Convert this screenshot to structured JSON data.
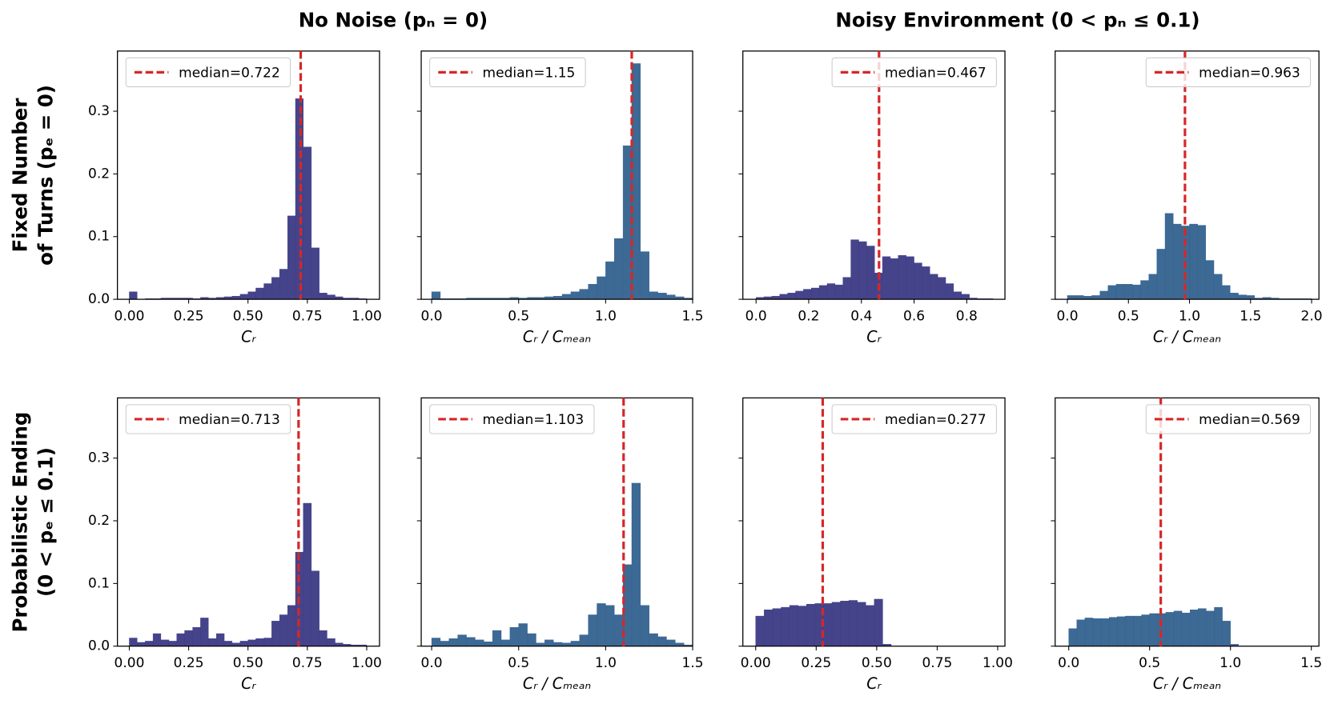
{
  "column_titles": [
    "No Noise (pₙ = 0)",
    "Noisy Environment (0 < pₙ ≤ 0.1)"
  ],
  "row_titles": [
    [
      "Fixed Number",
      "of Turns (pₑ = 0)"
    ],
    [
      "Probabilistic Ending",
      "(0 < pₑ ≤ 0.1)"
    ]
  ],
  "chart_data": [
    {
      "type": "histogram",
      "color": "#3b3a85",
      "xlabel": "Cᵣ",
      "median": 0.722,
      "legend_label": "median=0.722",
      "legend": "upper left",
      "xlim": [
        -0.05,
        1.054
      ],
      "xticks": [
        {
          "value": 0,
          "label": "0.00"
        },
        0.25,
        {
          "value": 0.5,
          "label": "0.50"
        },
        0.75,
        {
          "value": 1,
          "label": "1.00"
        }
      ],
      "ylim": [
        0,
        0.396
      ],
      "yticks": [
        {
          "value": 0,
          "label": "0.0"
        },
        0.1,
        0.2,
        0.3
      ],
      "bins": [
        0,
        0.033,
        0.067,
        0.1,
        0.133,
        0.167,
        0.2,
        0.233,
        0.267,
        0.3,
        0.333,
        0.367,
        0.4,
        0.433,
        0.467,
        0.5,
        0.533,
        0.567,
        0.6,
        0.633,
        0.667,
        0.7,
        0.733,
        0.767,
        0.8,
        0.833,
        0.867,
        0.9,
        0.933,
        0.967,
        1.0
      ],
      "values": [
        0.012,
        0,
        0.001,
        0.001,
        0.002,
        0.002,
        0.002,
        0.002,
        0.001,
        0.003,
        0.002,
        0.003,
        0.004,
        0.005,
        0.008,
        0.012,
        0.018,
        0.025,
        0.035,
        0.048,
        0.133,
        0.32,
        0.243,
        0.082,
        0.01,
        0.007,
        0.004,
        0.002,
        0.002,
        0.001
      ]
    },
    {
      "type": "histogram",
      "color": "#33618f",
      "xlabel": "Cᵣ / Cₘₑₐₙ",
      "median": 1.15,
      "legend_label": "median=1.15",
      "legend": "upper left",
      "xlim": [
        -0.06,
        1.5
      ],
      "xticks": [
        {
          "value": 0,
          "label": "0.0"
        },
        0.5,
        {
          "value": 1,
          "label": "1.0"
        },
        1.5
      ],
      "ylim": [
        0,
        0.396
      ],
      "bins": [
        0,
        0.05,
        0.1,
        0.15,
        0.2,
        0.25,
        0.3,
        0.35,
        0.4,
        0.45,
        0.5,
        0.55,
        0.6,
        0.65,
        0.7,
        0.75,
        0.8,
        0.85,
        0.9,
        0.95,
        1.0,
        1.05,
        1.1,
        1.15,
        1.2,
        1.25,
        1.3,
        1.35,
        1.4,
        1.45,
        1.5
      ],
      "values": [
        0.012,
        0.001,
        0.001,
        0.001,
        0.002,
        0.002,
        0.002,
        0.002,
        0.002,
        0.003,
        0.002,
        0.003,
        0.003,
        0.004,
        0.005,
        0.008,
        0.012,
        0.016,
        0.024,
        0.036,
        0.06,
        0.097,
        0.245,
        0.376,
        0.076,
        0.012,
        0.01,
        0.007,
        0.004,
        0.002
      ]
    },
    {
      "type": "histogram",
      "color": "#3b3a85",
      "xlabel": "Cᵣ",
      "median": 0.467,
      "legend_label": "median=0.467",
      "legend": "upper right",
      "xlim": [
        -0.05,
        0.945
      ],
      "xticks": [
        {
          "value": 0,
          "label": "0.0"
        },
        0.2,
        0.4,
        0.6,
        0.8
      ],
      "ylim": [
        0,
        0.396
      ],
      "bins": [
        0,
        0.03,
        0.06,
        0.09,
        0.12,
        0.15,
        0.18,
        0.21,
        0.24,
        0.27,
        0.3,
        0.33,
        0.36,
        0.39,
        0.42,
        0.45,
        0.48,
        0.51,
        0.54,
        0.57,
        0.6,
        0.63,
        0.66,
        0.69,
        0.72,
        0.75,
        0.78,
        0.81,
        0.84,
        0.87,
        0.9
      ],
      "values": [
        0.003,
        0.004,
        0.005,
        0.008,
        0.01,
        0.013,
        0.016,
        0.018,
        0.022,
        0.025,
        0.023,
        0.035,
        0.095,
        0.092,
        0.085,
        0.042,
        0.068,
        0.065,
        0.07,
        0.068,
        0.058,
        0.052,
        0.04,
        0.035,
        0.025,
        0.012,
        0.008,
        0.002,
        0.001,
        0.001
      ]
    },
    {
      "type": "histogram",
      "color": "#33618f",
      "xlabel": "Cᵣ / Cₘₑₐₙ",
      "median": 0.963,
      "legend_label": "median=0.963",
      "legend": "upper right",
      "xlim": [
        -0.1,
        2.06
      ],
      "xticks": [
        {
          "value": 0,
          "label": "0.0"
        },
        0.5,
        {
          "value": 1,
          "label": "1.0"
        },
        1.5,
        {
          "value": 2,
          "label": "2.0"
        }
      ],
      "ylim": [
        0,
        0.396
      ],
      "bins": [
        0,
        0.067,
        0.133,
        0.2,
        0.267,
        0.333,
        0.4,
        0.467,
        0.533,
        0.6,
        0.667,
        0.733,
        0.8,
        0.867,
        0.933,
        1.0,
        1.067,
        1.133,
        1.2,
        1.267,
        1.333,
        1.4,
        1.467,
        1.533,
        1.6,
        1.667,
        1.733,
        1.8,
        1.867,
        1.933,
        2.0
      ],
      "values": [
        0.006,
        0.006,
        0.005,
        0.006,
        0.013,
        0.022,
        0.024,
        0.024,
        0.023,
        0.03,
        0.04,
        0.08,
        0.137,
        0.12,
        0.117,
        0.12,
        0.118,
        0.062,
        0.04,
        0.022,
        0.01,
        0.007,
        0.006,
        0.002,
        0.003,
        0.002,
        0.001,
        0.001,
        0.001,
        0.001
      ]
    },
    {
      "type": "histogram",
      "color": "#3b3a85",
      "xlabel": "Cᵣ",
      "median": 0.713,
      "legend_label": "median=0.713",
      "legend": "upper left",
      "xlim": [
        -0.05,
        1.054
      ],
      "xticks": [
        {
          "value": 0,
          "label": "0.00"
        },
        0.25,
        {
          "value": 0.5,
          "label": "0.50"
        },
        0.75,
        {
          "value": 1,
          "label": "1.00"
        }
      ],
      "ylim": [
        0,
        0.396
      ],
      "yticks": [
        {
          "value": 0,
          "label": "0.0"
        },
        0.1,
        0.2,
        0.3
      ],
      "bins": [
        0,
        0.033,
        0.067,
        0.1,
        0.133,
        0.167,
        0.2,
        0.233,
        0.267,
        0.3,
        0.333,
        0.367,
        0.4,
        0.433,
        0.467,
        0.5,
        0.533,
        0.567,
        0.6,
        0.633,
        0.667,
        0.7,
        0.733,
        0.767,
        0.8,
        0.833,
        0.867,
        0.9,
        0.933,
        0.967,
        1.0
      ],
      "values": [
        0.013,
        0.006,
        0.008,
        0.02,
        0.01,
        0.008,
        0.02,
        0.025,
        0.03,
        0.045,
        0.012,
        0.02,
        0.008,
        0.005,
        0.008,
        0.01,
        0.012,
        0.013,
        0.04,
        0.05,
        0.065,
        0.15,
        0.228,
        0.12,
        0.025,
        0.012,
        0.005,
        0.003,
        0.002,
        0.002
      ]
    },
    {
      "type": "histogram",
      "color": "#33618f",
      "xlabel": "Cᵣ / Cₘₑₐₙ",
      "median": 1.103,
      "legend_label": "median=1.103",
      "legend": "upper left",
      "xlim": [
        -0.06,
        1.5
      ],
      "xticks": [
        {
          "value": 0,
          "label": "0.0"
        },
        0.5,
        {
          "value": 1,
          "label": "1.0"
        },
        1.5
      ],
      "ylim": [
        0,
        0.396
      ],
      "bins": [
        0,
        0.05,
        0.1,
        0.15,
        0.2,
        0.25,
        0.3,
        0.35,
        0.4,
        0.45,
        0.5,
        0.55,
        0.6,
        0.65,
        0.7,
        0.75,
        0.8,
        0.85,
        0.9,
        0.95,
        1.0,
        1.05,
        1.1,
        1.15,
        1.2,
        1.25,
        1.3,
        1.35,
        1.4,
        1.45,
        1.5
      ],
      "values": [
        0.013,
        0.008,
        0.012,
        0.018,
        0.014,
        0.01,
        0.007,
        0.025,
        0.01,
        0.03,
        0.036,
        0.02,
        0.005,
        0.01,
        0.006,
        0.005,
        0.008,
        0.018,
        0.05,
        0.068,
        0.065,
        0.05,
        0.13,
        0.26,
        0.065,
        0.02,
        0.015,
        0.01,
        0.005,
        0.002
      ]
    },
    {
      "type": "histogram",
      "color": "#3b3a85",
      "xlabel": "Cᵣ",
      "median": 0.277,
      "legend_label": "median=0.277",
      "legend": "upper right",
      "xlim": [
        -0.053,
        1.03
      ],
      "xticks": [
        {
          "value": 0,
          "label": "0.00"
        },
        0.25,
        {
          "value": 0.5,
          "label": "0.50"
        },
        0.75,
        {
          "value": 1,
          "label": "1.00"
        }
      ],
      "ylim": [
        0,
        0.396
      ],
      "bins": [
        0,
        0.035,
        0.07,
        0.105,
        0.14,
        0.175,
        0.21,
        0.245,
        0.28,
        0.315,
        0.35,
        0.385,
        0.42,
        0.455,
        0.49,
        0.525,
        0.56
      ],
      "values": [
        0.048,
        0.058,
        0.06,
        0.062,
        0.065,
        0.064,
        0.067,
        0.068,
        0.068,
        0.07,
        0.072,
        0.073,
        0.07,
        0.065,
        0.075,
        0.003
      ]
    },
    {
      "type": "histogram",
      "color": "#33618f",
      "xlabel": "Cᵣ / Cₘₑₐₙ",
      "median": 0.569,
      "legend_label": "median=0.569",
      "legend": "upper right",
      "xlim": [
        -0.084,
        1.547
      ],
      "xticks": [
        {
          "value": 0,
          "label": "0.0"
        },
        0.5,
        {
          "value": 1,
          "label": "1.0"
        },
        1.5
      ],
      "ylim": [
        0,
        0.396
      ],
      "bins": [
        0,
        0.05,
        0.1,
        0.15,
        0.2,
        0.25,
        0.3,
        0.35,
        0.4,
        0.45,
        0.5,
        0.55,
        0.6,
        0.65,
        0.7,
        0.75,
        0.8,
        0.85,
        0.9,
        0.95,
        1.0,
        1.05
      ],
      "values": [
        0.028,
        0.042,
        0.045,
        0.044,
        0.044,
        0.046,
        0.047,
        0.048,
        0.048,
        0.05,
        0.052,
        0.052,
        0.054,
        0.056,
        0.053,
        0.058,
        0.06,
        0.056,
        0.062,
        0.04,
        0.003
      ]
    }
  ]
}
